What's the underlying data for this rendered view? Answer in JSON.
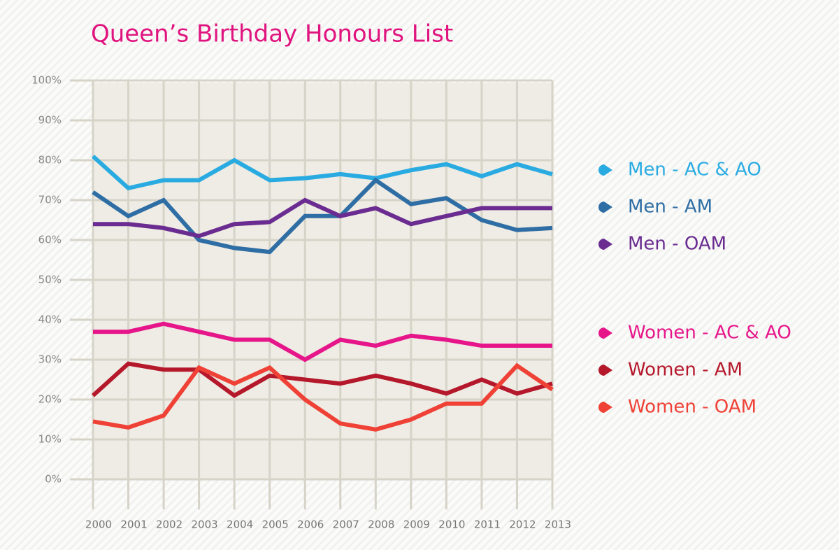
{
  "chart_data": {
    "type": "line",
    "title": "Queen’s Birthday Honours List",
    "categories": [
      "2000",
      "2001",
      "2002",
      "2003",
      "2004",
      "2005",
      "2006",
      "2007",
      "2008",
      "2009",
      "2010",
      "2011",
      "2012",
      "2013"
    ],
    "series": [
      {
        "name": "Men - AC & AO",
        "color": "#29abe2",
        "values": [
          81,
          73,
          75,
          75,
          80,
          75,
          75.5,
          76.5,
          75.5,
          77.5,
          79,
          76,
          79,
          76.5
        ]
      },
      {
        "name": "Men - AM",
        "color": "#2f6ea4",
        "values": [
          72,
          66,
          70,
          60,
          58,
          57,
          66,
          66,
          75,
          69,
          70.5,
          65,
          62.5,
          63
        ]
      },
      {
        "name": "Men - OAM",
        "color": "#6a2c91",
        "values": [
          64,
          64,
          63,
          61,
          64,
          64.5,
          70,
          66,
          68,
          64,
          66,
          68,
          68,
          68
        ]
      },
      {
        "name": "Women - AC & AO",
        "color": "#e6168a",
        "values": [
          37,
          37,
          39,
          37,
          35,
          35,
          30,
          35,
          33.5,
          36,
          35,
          33.5,
          33.5,
          33.5
        ]
      },
      {
        "name": "Women - AM",
        "color": "#b5182b",
        "values": [
          21,
          29,
          27.5,
          27.5,
          21,
          26,
          25,
          24,
          26,
          24,
          21.5,
          25,
          21.5,
          24
        ]
      },
      {
        "name": "Women - OAM",
        "color": "#ef4136",
        "values": [
          14.5,
          13,
          16,
          28,
          24,
          28,
          20,
          14,
          12.5,
          15,
          19,
          19,
          28.5,
          22.5
        ]
      }
    ],
    "ylim": [
      0,
      100
    ],
    "yticks": [
      {
        "value": 0,
        "label": "0%"
      },
      {
        "value": 10,
        "label": "10%"
      },
      {
        "value": 20,
        "label": "20%"
      },
      {
        "value": 30,
        "label": "30%"
      },
      {
        "value": 40,
        "label": "40%"
      },
      {
        "value": 50,
        "label": "50%"
      },
      {
        "value": 60,
        "label": "60%"
      },
      {
        "value": 70,
        "label": "70%"
      },
      {
        "value": 80,
        "label": "80%"
      },
      {
        "value": 90,
        "label": "90%"
      },
      {
        "value": 100,
        "label": "100%"
      }
    ],
    "grid": true,
    "legend": "right"
  }
}
